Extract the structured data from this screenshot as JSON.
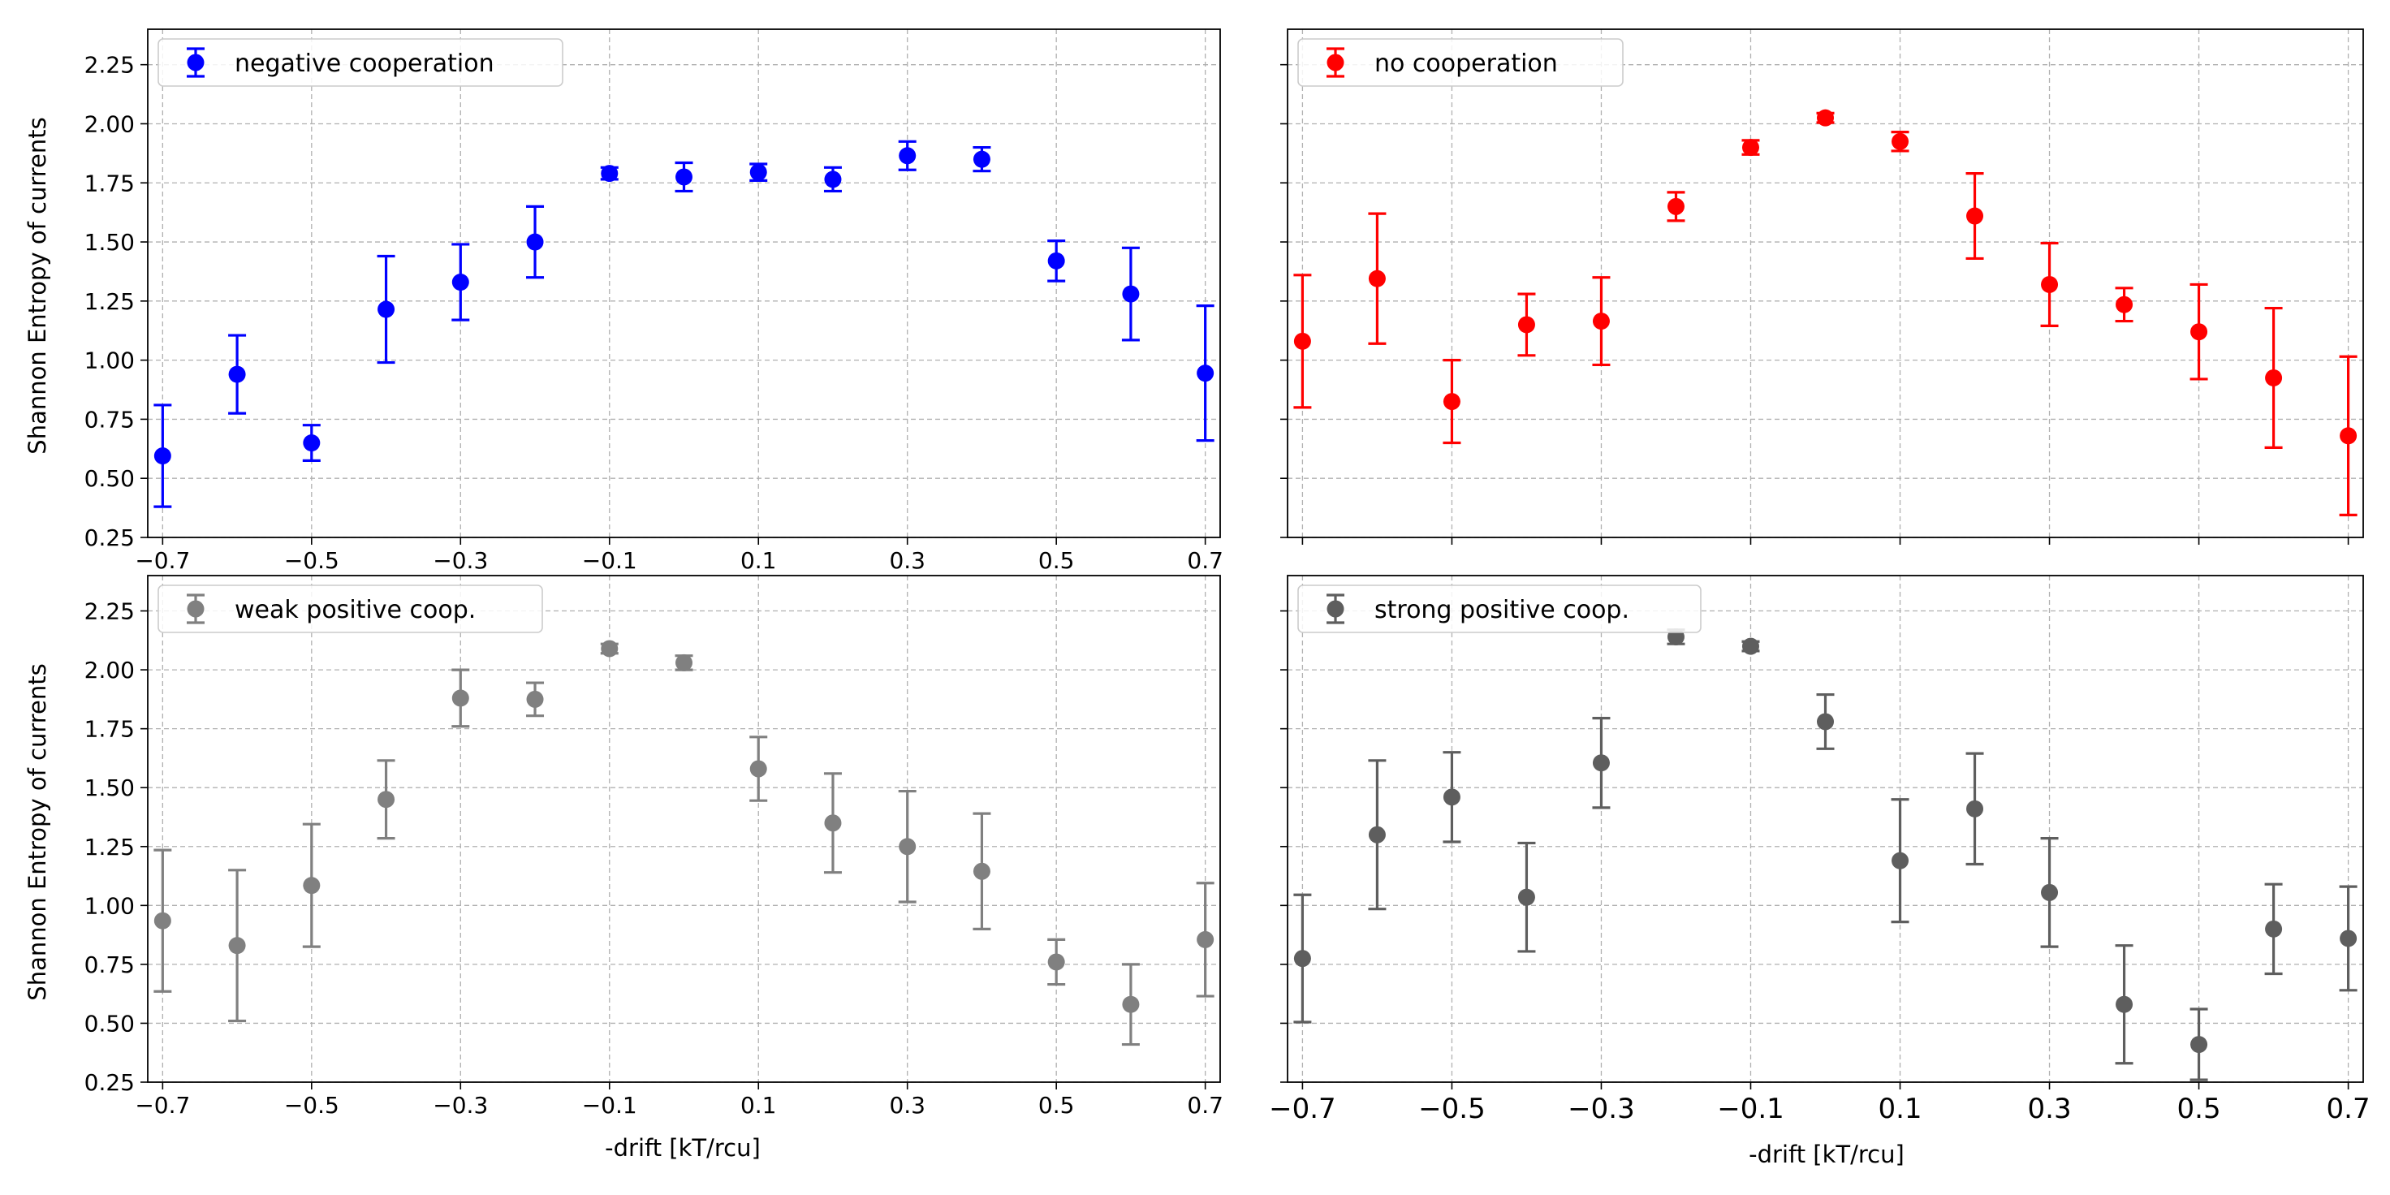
{
  "figure": {
    "ylabel": "Shannon Entropy of currents",
    "xlabel": "-drift [kT/rcu]"
  },
  "chart_data": [
    {
      "type": "scatter",
      "series": [
        {
          "name": "negative cooperation",
          "color": "#0000ff",
          "x": [
            -0.7,
            -0.6,
            -0.5,
            -0.4,
            -0.3,
            -0.2,
            -0.1,
            0.0,
            0.1,
            0.2,
            0.3,
            0.4,
            0.5,
            0.6,
            0.7
          ],
          "y": [
            0.595,
            0.94,
            0.65,
            1.215,
            1.33,
            1.5,
            1.79,
            1.775,
            1.795,
            1.765,
            1.865,
            1.85,
            1.42,
            1.28,
            0.945
          ],
          "err": [
            0.215,
            0.165,
            0.075,
            0.225,
            0.16,
            0.15,
            0.025,
            0.06,
            0.035,
            0.05,
            0.06,
            0.05,
            0.085,
            0.195,
            0.285
          ]
        }
      ],
      "xlim": [
        -0.72,
        0.72
      ],
      "ylim": [
        0.25,
        2.4
      ],
      "xticks": [
        -0.7,
        -0.5,
        -0.3,
        -0.1,
        0.1,
        0.3,
        0.5,
        0.7
      ],
      "xtick_labels": [
        "−0.7",
        "−0.5",
        "−0.3",
        "−0.1",
        "0.1",
        "0.3",
        "0.5",
        "0.7"
      ],
      "yticks": [
        0.25,
        0.5,
        0.75,
        1.0,
        1.25,
        1.5,
        1.75,
        2.0,
        2.25
      ],
      "ytick_labels": [
        "0.25",
        "0.50",
        "0.75",
        "1.00",
        "1.25",
        "1.50",
        "1.75",
        "2.00",
        "2.25"
      ],
      "grid": true,
      "legend": "top-left"
    },
    {
      "type": "scatter",
      "series": [
        {
          "name": "no cooperation",
          "color": "#ff0000",
          "x": [
            -0.7,
            -0.6,
            -0.5,
            -0.4,
            -0.3,
            -0.2,
            -0.1,
            0.0,
            0.1,
            0.2,
            0.3,
            0.4,
            0.5,
            0.6,
            0.7
          ],
          "y": [
            1.08,
            1.345,
            0.825,
            1.15,
            1.165,
            1.65,
            1.9,
            2.025,
            1.925,
            1.61,
            1.32,
            1.235,
            1.12,
            0.925,
            0.68
          ],
          "err": [
            0.28,
            0.275,
            0.175,
            0.13,
            0.185,
            0.06,
            0.03,
            0.02,
            0.04,
            0.18,
            0.175,
            0.07,
            0.2,
            0.295,
            0.335
          ]
        }
      ],
      "xlim": [
        -0.72,
        0.72
      ],
      "ylim": [
        0.25,
        2.4
      ],
      "xticks": [
        -0.7,
        -0.5,
        -0.3,
        -0.1,
        0.1,
        0.3,
        0.5,
        0.7
      ],
      "xtick_labels": [],
      "yticks": [
        0.25,
        0.5,
        0.75,
        1.0,
        1.25,
        1.5,
        1.75,
        2.0,
        2.25
      ],
      "ytick_labels": [],
      "grid": true,
      "legend": "top-left"
    },
    {
      "type": "scatter",
      "series": [
        {
          "name": "weak positive coop.",
          "color": "#808080",
          "x": [
            -0.7,
            -0.6,
            -0.5,
            -0.4,
            -0.3,
            -0.2,
            -0.1,
            0.0,
            0.1,
            0.2,
            0.3,
            0.4,
            0.5,
            0.6,
            0.7
          ],
          "y": [
            0.935,
            0.83,
            1.085,
            1.45,
            1.88,
            1.875,
            2.09,
            2.03,
            1.58,
            1.35,
            1.25,
            1.145,
            0.76,
            0.58,
            0.855
          ],
          "err": [
            0.3,
            0.32,
            0.26,
            0.165,
            0.12,
            0.07,
            0.02,
            0.03,
            0.135,
            0.21,
            0.235,
            0.245,
            0.095,
            0.17,
            0.24
          ]
        }
      ],
      "xlim": [
        -0.72,
        0.72
      ],
      "ylim": [
        0.25,
        2.4
      ],
      "xticks": [
        -0.7,
        -0.5,
        -0.3,
        -0.1,
        0.1,
        0.3,
        0.5,
        0.7
      ],
      "xtick_labels": [
        "−0.7",
        "−0.5",
        "−0.3",
        "−0.1",
        "0.1",
        "0.3",
        "0.5",
        "0.7"
      ],
      "yticks": [
        0.25,
        0.5,
        0.75,
        1.0,
        1.25,
        1.5,
        1.75,
        2.0,
        2.25
      ],
      "ytick_labels": [
        "0.25",
        "0.50",
        "0.75",
        "1.00",
        "1.25",
        "1.50",
        "1.75",
        "2.00",
        "2.25"
      ],
      "grid": true,
      "legend": "top-left"
    },
    {
      "type": "scatter",
      "series": [
        {
          "name": "strong positive coop.",
          "color": "#5e5e5e",
          "x": [
            -0.7,
            -0.6,
            -0.5,
            -0.4,
            -0.3,
            -0.2,
            -0.1,
            0.0,
            0.1,
            0.2,
            0.3,
            0.4,
            0.5,
            0.6,
            0.7
          ],
          "y": [
            0.775,
            1.3,
            1.46,
            1.035,
            1.605,
            2.14,
            2.1,
            1.78,
            1.19,
            1.41,
            1.055,
            0.58,
            0.41,
            0.9,
            0.86
          ],
          "err": [
            0.27,
            0.315,
            0.19,
            0.23,
            0.19,
            0.03,
            0.02,
            0.115,
            0.26,
            0.235,
            0.23,
            0.25,
            0.15,
            0.19,
            0.22
          ]
        }
      ],
      "xlim": [
        -0.72,
        0.72
      ],
      "ylim": [
        0.25,
        2.4
      ],
      "xticks": [
        -0.7,
        -0.5,
        -0.3,
        -0.1,
        0.1,
        0.3,
        0.5,
        0.7
      ],
      "xtick_labels": [
        "−0.7",
        "−0.5",
        "−0.3",
        "−0.1",
        "0.1",
        "0.3",
        "0.5",
        "0.7"
      ],
      "yticks": [
        0.25,
        0.5,
        0.75,
        1.0,
        1.25,
        1.5,
        1.75,
        2.0,
        2.25
      ],
      "ytick_labels": [],
      "grid": true,
      "legend": "top-left"
    }
  ]
}
